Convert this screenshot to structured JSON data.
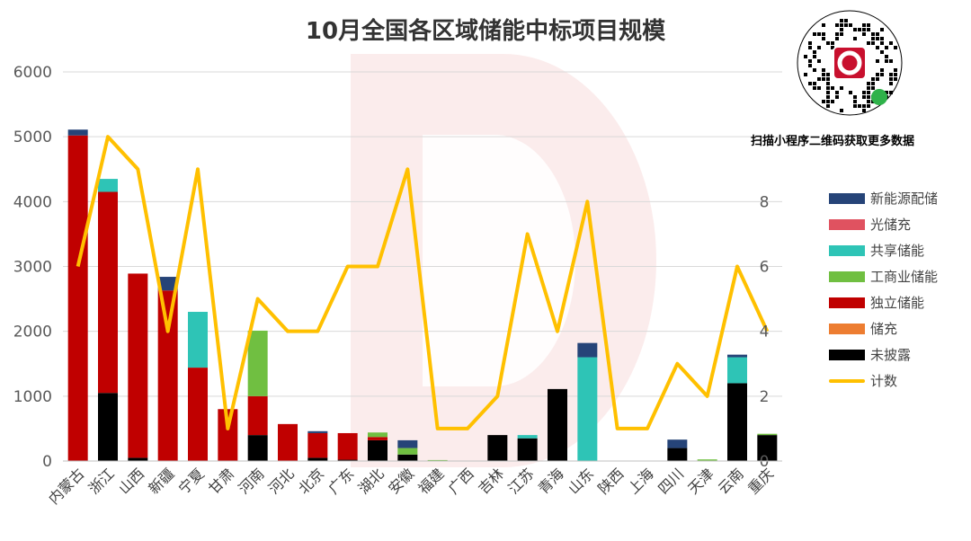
{
  "title": "10月全国各区域储能中标项目规模",
  "qr_caption": "扫描小程序二维码获取更多数据",
  "colors": {
    "新能源配储": "#264478",
    "光储充": "#E05260",
    "共享储能": "#2EC4B6",
    "工商业储能": "#70BF41",
    "独立储能": "#C00000",
    "储充": "#ED7D31",
    "未披露": "#000000",
    "计数": "#FFC000"
  },
  "chart_data": {
    "type": "bar",
    "stacked": true,
    "title": "10月全国各区域储能中标项目规模",
    "categories": [
      "内蒙古",
      "浙江",
      "山西",
      "新疆",
      "宁夏",
      "甘肃",
      "河南",
      "河北",
      "北京",
      "广东",
      "湖北",
      "安徽",
      "福建",
      "广西",
      "吉林",
      "江苏",
      "青海",
      "山东",
      "陕西",
      "上海",
      "四川",
      "天津",
      "云南",
      "重庆"
    ],
    "ylim": [
      0,
      6000
    ],
    "yticks": [
      0,
      1000,
      2000,
      3000,
      4000,
      5000,
      6000
    ],
    "y2lim": [
      0,
      12
    ],
    "y2ticks": [
      0,
      2,
      4,
      6,
      8
    ],
    "legend_position": "right",
    "grid": true,
    "series": [
      {
        "name": "未披露",
        "values": [
          0,
          1050,
          50,
          0,
          0,
          0,
          400,
          0,
          50,
          20,
          320,
          100,
          0,
          0,
          400,
          350,
          1110,
          0,
          0,
          0,
          200,
          0,
          1200,
          400
        ]
      },
      {
        "name": "储充",
        "values": [
          0,
          0,
          0,
          0,
          0,
          0,
          0,
          0,
          0,
          0,
          0,
          0,
          0,
          0,
          0,
          0,
          0,
          0,
          0,
          0,
          0,
          0,
          0,
          0
        ]
      },
      {
        "name": "独立储能",
        "values": [
          5020,
          3100,
          2840,
          2630,
          1440,
          800,
          600,
          570,
          380,
          410,
          50,
          0,
          0,
          0,
          0,
          0,
          0,
          0,
          0,
          0,
          0,
          0,
          0,
          0
        ]
      },
      {
        "name": "工商业储能",
        "values": [
          0,
          0,
          0,
          0,
          0,
          0,
          1010,
          0,
          0,
          0,
          70,
          100,
          15,
          0,
          0,
          0,
          0,
          0,
          0,
          0,
          0,
          25,
          0,
          20
        ]
      },
      {
        "name": "共享储能",
        "values": [
          0,
          200,
          0,
          0,
          860,
          0,
          0,
          0,
          0,
          0,
          0,
          0,
          0,
          0,
          0,
          50,
          0,
          1600,
          0,
          0,
          0,
          0,
          400,
          0
        ]
      },
      {
        "name": "光储充",
        "values": [
          0,
          0,
          0,
          0,
          0,
          0,
          0,
          0,
          0,
          0,
          0,
          0,
          0,
          0,
          0,
          0,
          0,
          0,
          0,
          0,
          0,
          0,
          0,
          0
        ]
      },
      {
        "name": "新能源配储",
        "values": [
          90,
          0,
          0,
          210,
          0,
          0,
          0,
          0,
          30,
          0,
          0,
          120,
          0,
          0,
          0,
          0,
          0,
          220,
          0,
          0,
          130,
          0,
          40,
          0
        ]
      }
    ],
    "line": {
      "name": "计数",
      "axis": "right",
      "values": [
        6,
        10,
        9,
        4,
        9,
        1,
        5,
        4,
        4,
        6,
        6,
        9,
        1,
        1,
        2,
        7,
        4,
        8,
        1,
        1,
        3,
        2,
        6,
        4
      ]
    }
  },
  "legend": [
    "新能源配储",
    "光储充",
    "共享储能",
    "工商业储能",
    "独立储能",
    "储充",
    "未披露",
    "计数"
  ]
}
